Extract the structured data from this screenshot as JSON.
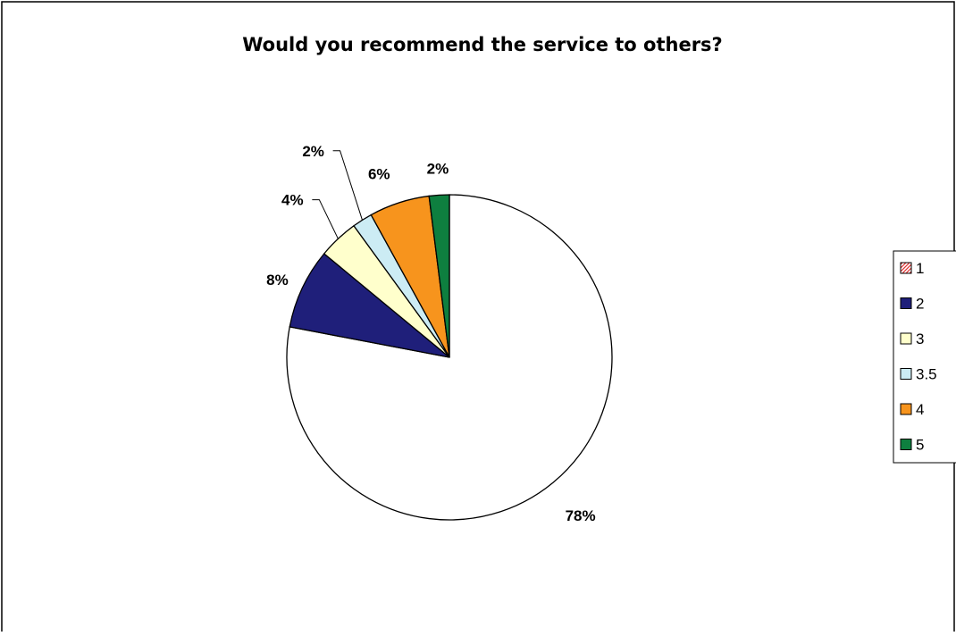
{
  "chart_data": {
    "type": "pie",
    "title": "Would you recommend the service to others?",
    "categories": [
      "1",
      "2",
      "3",
      "3.5",
      "4",
      "5"
    ],
    "values": [
      78,
      8,
      4,
      2,
      6,
      2
    ],
    "data_labels": [
      "78%",
      "8%",
      "4%",
      "2%",
      "6%",
      "2%"
    ],
    "colors": [
      "#ffffff",
      "#1f1f7a",
      "#ffffcc",
      "#ccecf4",
      "#f7941d",
      "#0e7f3f"
    ],
    "legend_position": "right"
  }
}
